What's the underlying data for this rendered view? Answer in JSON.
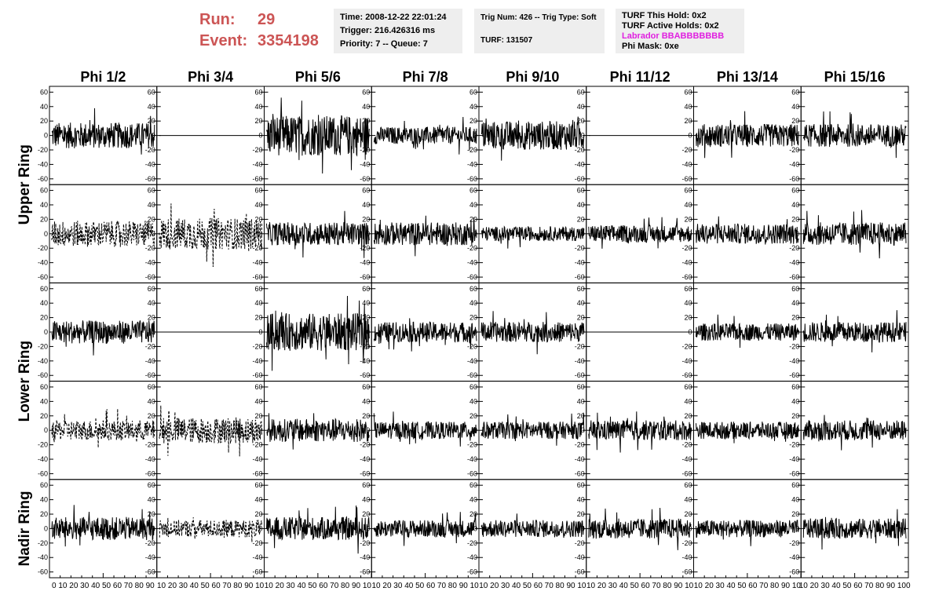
{
  "header": {
    "run_label": "Run:",
    "run_value": "29",
    "event_label": "Event:",
    "event_value": "3354198",
    "time": "Time: 2008-12-22 22:01:24",
    "trigger": "Trigger: 216.426316 ms",
    "priority": "Priority: 7 -- Queue: 7",
    "trig_num": "Trig Num: 426 -- Trig Type: Soft",
    "turf": "TURF: 131507",
    "turf_this_hold": "TURF This Hold: 0x2",
    "turf_active_holds": "TURF Active Holds: 0x2",
    "labrador": "Labrador BBABBBBBBB",
    "phi_mask": "Phi Mask: 0xe"
  },
  "colors": {
    "run_text": "#cc5555",
    "labrador_text": "#e020e0",
    "info_bg": "#eeeeee"
  },
  "chart_data": {
    "type": "line",
    "columns": [
      "Phi 1/2",
      "Phi 3/4",
      "Phi 5/6",
      "Phi 7/8",
      "Phi 9/10",
      "Phi 11/12",
      "Phi 13/14",
      "Phi 15/16"
    ],
    "ring_labels": [
      "Upper Ring",
      "Lower Ring",
      "Nadir Ring"
    ],
    "rows": [
      {
        "ring": "Upper Ring",
        "styles": [
          "solid",
          "flat",
          "solid",
          "solid",
          "solid",
          "flat",
          "solid",
          "solid"
        ],
        "amplitude": [
          18,
          0,
          28,
          12,
          20,
          0,
          16,
          16
        ]
      },
      {
        "ring": "Upper Ring",
        "styles": [
          "dashed",
          "dashed",
          "solid",
          "solid",
          "solid",
          "solid",
          "solid",
          "solid"
        ],
        "amplitude": [
          18,
          22,
          16,
          16,
          10,
          12,
          14,
          16
        ]
      },
      {
        "ring": "Lower Ring",
        "styles": [
          "solid",
          "flat",
          "solid",
          "solid",
          "solid",
          "flat",
          "solid",
          "solid"
        ],
        "amplitude": [
          16,
          0,
          26,
          14,
          14,
          0,
          12,
          14
        ]
      },
      {
        "ring": "Lower Ring",
        "styles": [
          "dashed",
          "dashed",
          "solid",
          "solid",
          "solid",
          "solid",
          "solid",
          "solid"
        ],
        "amplitude": [
          14,
          18,
          16,
          12,
          12,
          14,
          12,
          14
        ]
      },
      {
        "ring": "Nadir Ring",
        "styles": [
          "solid",
          "dashed",
          "solid",
          "solid",
          "solid",
          "solid",
          "solid",
          "solid"
        ],
        "amplitude": [
          16,
          12,
          16,
          12,
          12,
          14,
          12,
          14
        ]
      }
    ],
    "ylim": [
      -68,
      68
    ],
    "y_ticks": [
      -60,
      -40,
      -20,
      0,
      20,
      40,
      60
    ],
    "xlim": [
      0,
      100
    ],
    "x_tick_labels": [
      "0",
      "10",
      "20",
      "30",
      "40",
      "50",
      "60",
      "70",
      "80",
      "90",
      "100"
    ],
    "x_tick_strip": [
      "0 10 20 30 40 50 60 70 80 90",
      "10 20 30 40 50 60 70 80 90 10",
      "10 20 30 40 50 60 70 80 90 10",
      "10 20 30 40 50 60 70 80 90 10",
      "10 20 30 40 50 60 70 80 90 10",
      "10 20 30 40 50 60 70 80 90 10",
      "10 20 30 40 50 60 70 80 90 10",
      "10 20 30 40 50 60 70 80 90 100"
    ],
    "samples_per_trace": 260,
    "grid": false,
    "legend": "none"
  }
}
